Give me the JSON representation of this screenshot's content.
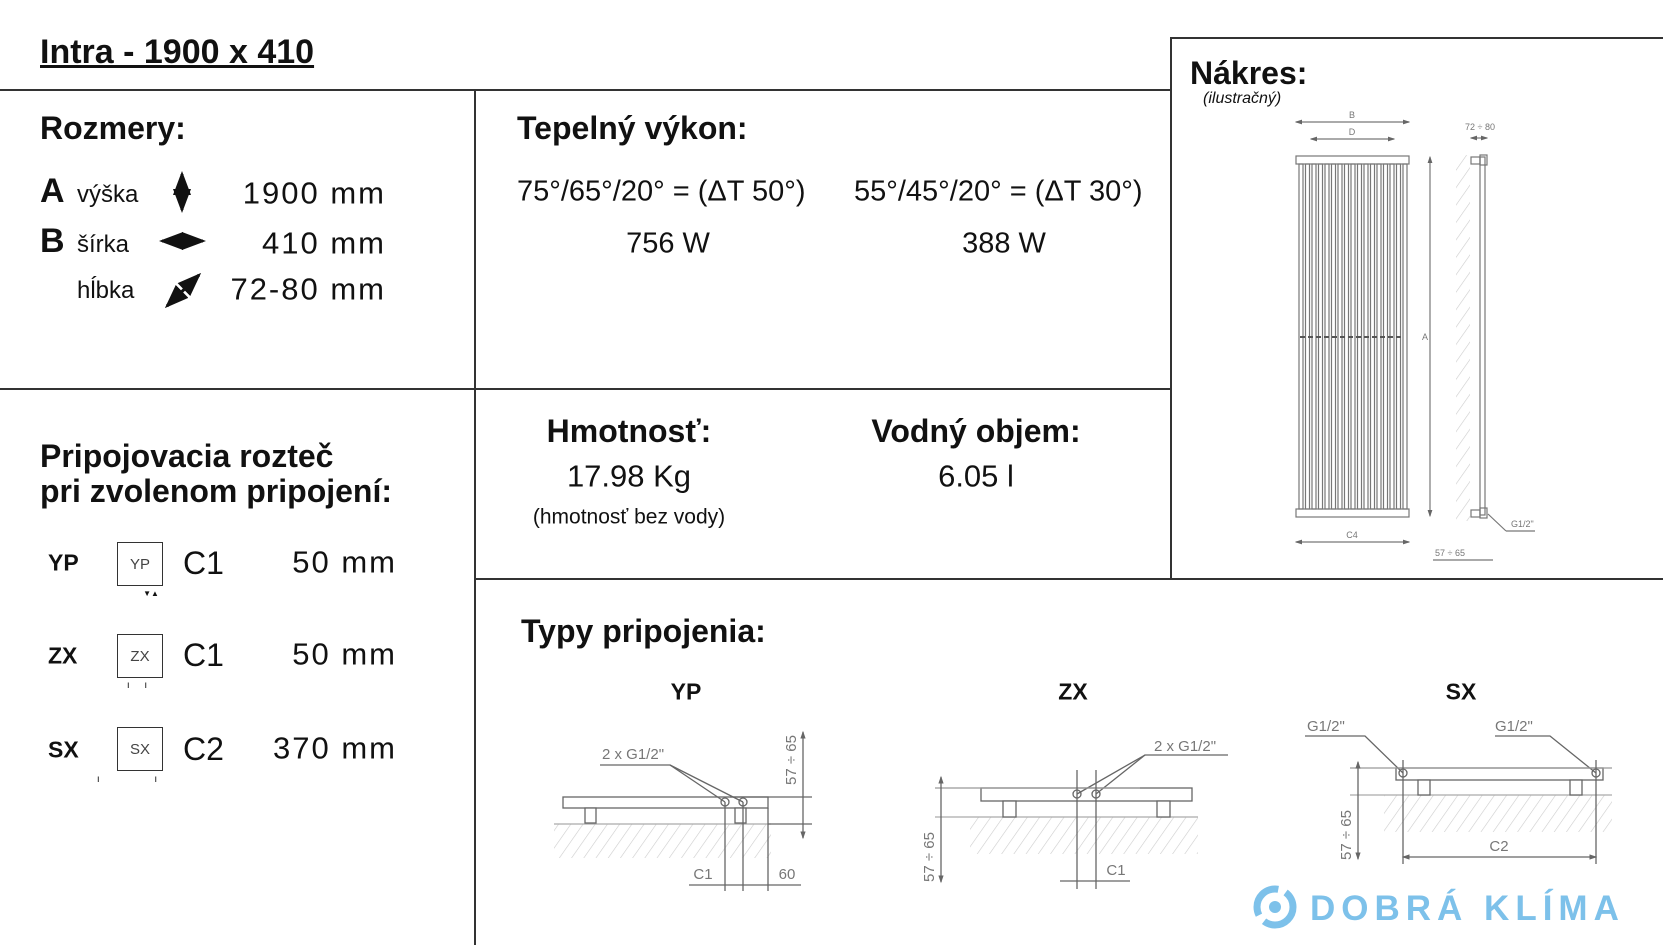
{
  "title": "Intra - 1900 x 410",
  "dimensions": {
    "heading": "Rozmery:",
    "rows": [
      {
        "letter": "A",
        "label": "výška",
        "icon": "vertical-arrow-icon",
        "value": "1900 mm"
      },
      {
        "letter": "B",
        "label": "šírka",
        "icon": "horizontal-arrow-icon",
        "value": "410 mm"
      },
      {
        "letter": "",
        "label": "hĺbka",
        "icon": "diagonal-arrow-icon",
        "value": "72-80 mm"
      }
    ]
  },
  "heat_output": {
    "heading": "Tepelný výkon:",
    "columns": [
      {
        "condition": "75°/65°/20° = (ΔT 50°)",
        "value": "756 W"
      },
      {
        "condition": "55°/45°/20° = (ΔT 30°)",
        "value": "388 W"
      }
    ]
  },
  "weight": {
    "heading": "Hmotnosť:",
    "value": "17.98 Kg",
    "note": "(hmotnosť bez vody)"
  },
  "water_volume": {
    "heading": "Vodný objem:",
    "value": "6.05 l"
  },
  "connection_spacing": {
    "heading_line1": "Pripojovacia rozteč",
    "heading_line2": "pri zvolenom pripojení:",
    "rows": [
      {
        "type": "YP",
        "box": "YP",
        "dim": "C1",
        "value": "50 mm"
      },
      {
        "type": "ZX",
        "box": "ZX",
        "dim": "C1",
        "value": "50 mm"
      },
      {
        "type": "SX",
        "box": "SX",
        "dim": "C2",
        "value": "370 mm"
      }
    ]
  },
  "drawing": {
    "heading": "Nákres:",
    "subheading": "(ilustračný)",
    "labels": {
      "b": "B",
      "d": "D",
      "a": "A",
      "c4": "C4",
      "depth": "72 ÷ 80",
      "thread": "G1/2\"",
      "wall": "57 ÷ 65"
    }
  },
  "connection_types": {
    "heading": "Typy pripojenia:",
    "types": [
      {
        "name": "YP",
        "thread": "2 x G1/2\"",
        "wall": "57 ÷ 65",
        "dim1": "C1",
        "dim2": "60"
      },
      {
        "name": "ZX",
        "thread": "2 x G1/2\"",
        "wall": "57 ÷ 65",
        "dim1": "C1"
      },
      {
        "name": "SX",
        "thread_left": "G1/2\"",
        "thread_right": "G1/2\"",
        "wall": "57 ÷ 65",
        "dim1": "C2"
      }
    ]
  },
  "logo": {
    "text": "DOBRÁ KLÍMA",
    "color": "#7dc1ea"
  }
}
